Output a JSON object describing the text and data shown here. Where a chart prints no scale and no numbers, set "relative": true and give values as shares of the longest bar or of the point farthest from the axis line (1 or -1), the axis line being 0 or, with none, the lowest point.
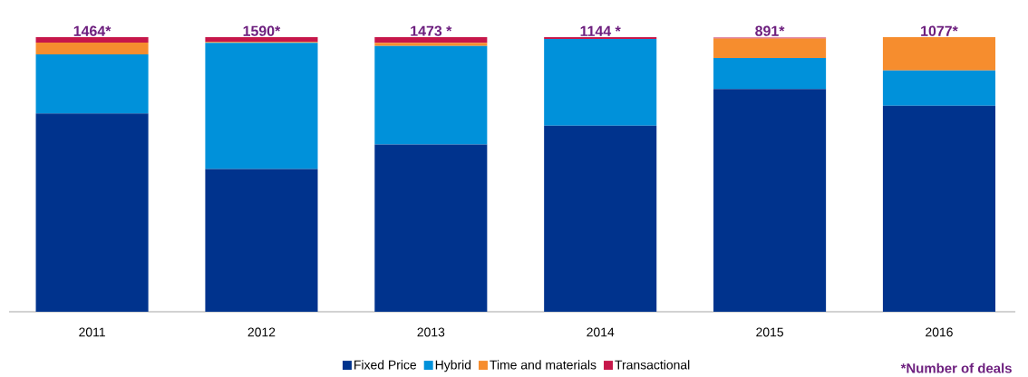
{
  "chart_data": {
    "type": "bar",
    "stacked": true,
    "relative": true,
    "legend": "bottom",
    "categories": [
      "2011",
      "2012",
      "2013",
      "2014",
      "2015",
      "2016"
    ],
    "series": [
      {
        "name": "Fixed Price",
        "color": "#00338d",
        "values": [
          0.722,
          0.52,
          0.609,
          0.677,
          0.811,
          0.75
        ]
      },
      {
        "name": "Hybrid",
        "color": "#0091da",
        "values": [
          0.215,
          0.459,
          0.359,
          0.316,
          0.113,
          0.129
        ]
      },
      {
        "name": "Time and materials",
        "color": "#f68d2e",
        "values": [
          0.043,
          0.004,
          0.011,
          0,
          0.071,
          0.121
        ]
      },
      {
        "name": "Transactional",
        "color": "#c6174a",
        "values": [
          0.02,
          0.017,
          0.021,
          0.007,
          0.003,
          0
        ]
      }
    ],
    "annotations": [
      {
        "text": "1464*",
        "x": "2011",
        "y": 1
      },
      {
        "text": "1590*",
        "x": "2012",
        "y": 1
      },
      {
        "text": "1473 *",
        "x": "2013",
        "y": 1
      },
      {
        "text": "1144 *",
        "x": "2014",
        "y": 1
      },
      {
        "text": "891*",
        "x": "2015",
        "y": 1
      },
      {
        "text": "1077*",
        "x": "2016",
        "y": 1
      },
      "*Number of deals"
    ]
  }
}
